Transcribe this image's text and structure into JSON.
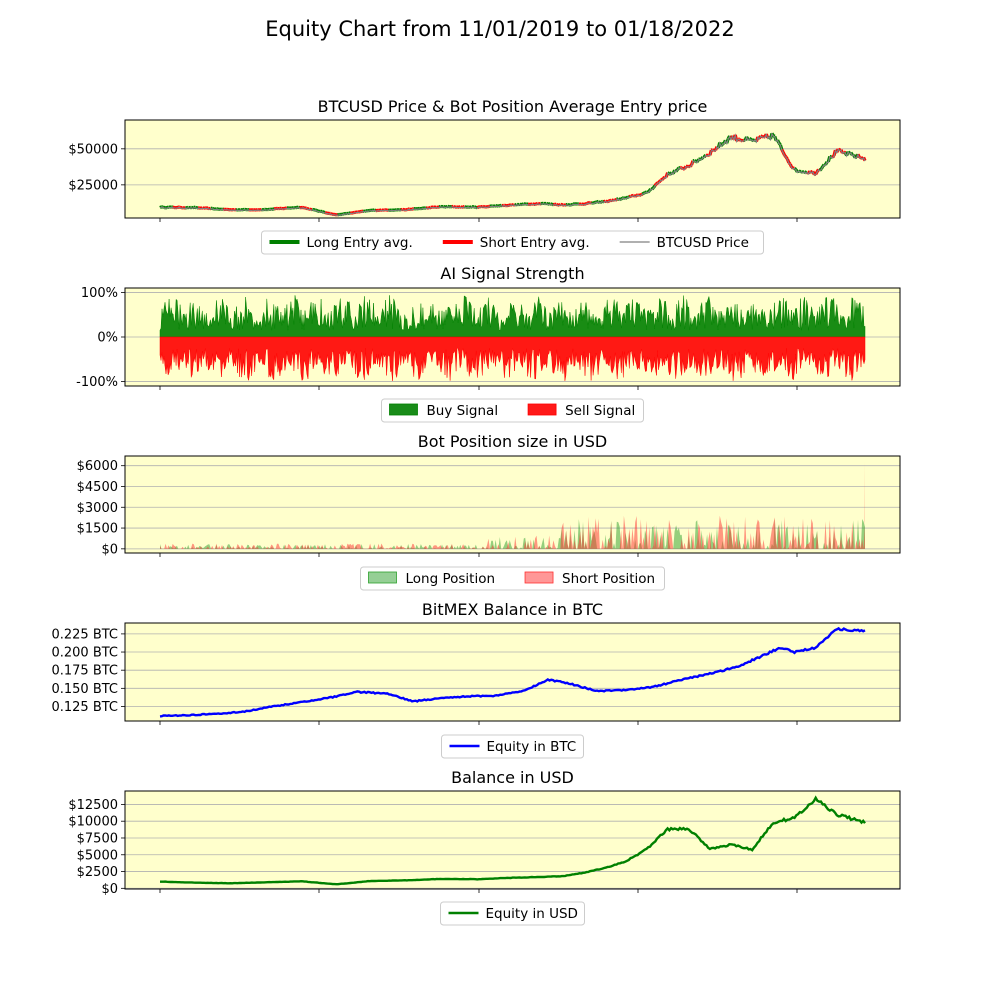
{
  "figure": {
    "title": "Equity Chart from 11/01/2019 to 01/18/2022",
    "plot_bg": "#ffffcc"
  },
  "chart_data": [
    {
      "type": "line",
      "title": "BTCUSD Price & Bot Position Average Entry price",
      "x_range": [
        "11/01/2019",
        "01/18/2022"
      ],
      "ylim": [
        2000,
        70000
      ],
      "yticks": [
        25000,
        50000
      ],
      "ytick_labels": [
        "$25000",
        "$50000"
      ],
      "grid": "y",
      "legend_position": "below",
      "x": [
        0,
        0.05,
        0.1,
        0.15,
        0.2,
        0.25,
        0.3,
        0.35,
        0.4,
        0.45,
        0.48,
        0.51,
        0.54,
        0.57,
        0.6,
        0.63,
        0.66,
        0.69,
        0.72,
        0.75,
        0.78,
        0.81,
        0.84,
        0.87,
        0.9,
        0.93,
        0.96,
        1.0
      ],
      "series": [
        {
          "name": "BTCUSD Price",
          "color": "#808080",
          "values": [
            9200,
            8800,
            7400,
            7500,
            9200,
            3800,
            7000,
            7500,
            9500,
            9200,
            10200,
            11000,
            11800,
            10800,
            11500,
            13000,
            15500,
            19000,
            32000,
            38000,
            47000,
            58000,
            55000,
            59000,
            35000,
            33000,
            48000,
            43000
          ]
        },
        {
          "name": "Long Entry avg.",
          "color": "#008000"
        },
        {
          "name": "Short Entry avg.",
          "color": "#ff0000"
        }
      ]
    },
    {
      "type": "area",
      "title": "AI Signal Strength",
      "ylim": [
        -110,
        110
      ],
      "yticks": [
        -100,
        0,
        100
      ],
      "ytick_labels": [
        "-100%",
        "0%",
        "100%"
      ],
      "grid": "y",
      "legend_position": "below",
      "series": [
        {
          "name": "Buy Signal",
          "color": "#008000",
          "typical_max": 95
        },
        {
          "name": "Sell Signal",
          "color": "#ff0000",
          "typical_min": -100
        }
      ]
    },
    {
      "type": "area",
      "title": "Bot Position size in USD",
      "ylim": [
        -300,
        6700
      ],
      "yticks": [
        0,
        1500,
        3000,
        4500,
        6000
      ],
      "ytick_labels": [
        "$0",
        "$1500",
        "$3000",
        "$4500",
        "$6000"
      ],
      "grid": "y",
      "legend_position": "below",
      "series": [
        {
          "name": "Long Position",
          "color": "#2ca02c",
          "max": 3500
        },
        {
          "name": "Short Position",
          "color": "#ff3030",
          "max": 6300
        }
      ]
    },
    {
      "type": "line",
      "title": "BitMEX Balance in BTC",
      "ylim": [
        0.105,
        0.24
      ],
      "yticks": [
        0.125,
        0.15,
        0.175,
        0.2,
        0.225
      ],
      "ytick_labels": [
        "0.125 BTC",
        "0.150 BTC",
        "0.175 BTC",
        "0.200 BTC",
        "0.225 BTC"
      ],
      "grid": "y",
      "legend_position": "below",
      "x": [
        0,
        0.04,
        0.08,
        0.12,
        0.16,
        0.2,
        0.24,
        0.28,
        0.32,
        0.36,
        0.4,
        0.44,
        0.48,
        0.52,
        0.55,
        0.58,
        0.62,
        0.66,
        0.7,
        0.74,
        0.78,
        0.82,
        0.85,
        0.88,
        0.9,
        0.93,
        0.96,
        1.0
      ],
      "series": [
        {
          "name": "Equity in BTC",
          "color": "#0000ff",
          "values": [
            0.112,
            0.113,
            0.115,
            0.118,
            0.125,
            0.131,
            0.137,
            0.145,
            0.143,
            0.132,
            0.137,
            0.139,
            0.14,
            0.148,
            0.162,
            0.157,
            0.146,
            0.148,
            0.152,
            0.162,
            0.17,
            0.18,
            0.193,
            0.206,
            0.2,
            0.206,
            0.232,
            0.229
          ]
        }
      ]
    },
    {
      "type": "line",
      "title": "Balance in USD",
      "ylim": [
        -100,
        14500
      ],
      "yticks": [
        0,
        2500,
        5000,
        7500,
        10000,
        12500
      ],
      "ytick_labels": [
        "$0",
        "$2500",
        "$5000",
        "$7500",
        "$10000",
        "$12500"
      ],
      "grid": "y",
      "legend_position": "below",
      "x": [
        0,
        0.05,
        0.1,
        0.15,
        0.2,
        0.25,
        0.3,
        0.35,
        0.4,
        0.45,
        0.48,
        0.51,
        0.54,
        0.57,
        0.6,
        0.63,
        0.66,
        0.69,
        0.72,
        0.75,
        0.78,
        0.81,
        0.84,
        0.87,
        0.9,
        0.93,
        0.96,
        1.0
      ],
      "series": [
        {
          "name": "Equity in USD",
          "color": "#008000",
          "values": [
            1000,
            850,
            750,
            900,
            1050,
            600,
            1100,
            1200,
            1400,
            1350,
            1500,
            1600,
            1700,
            1800,
            2300,
            3000,
            4000,
            5800,
            8800,
            8900,
            5900,
            6500,
            5800,
            9800,
            10500,
            13300,
            11000,
            9800
          ]
        }
      ]
    }
  ]
}
